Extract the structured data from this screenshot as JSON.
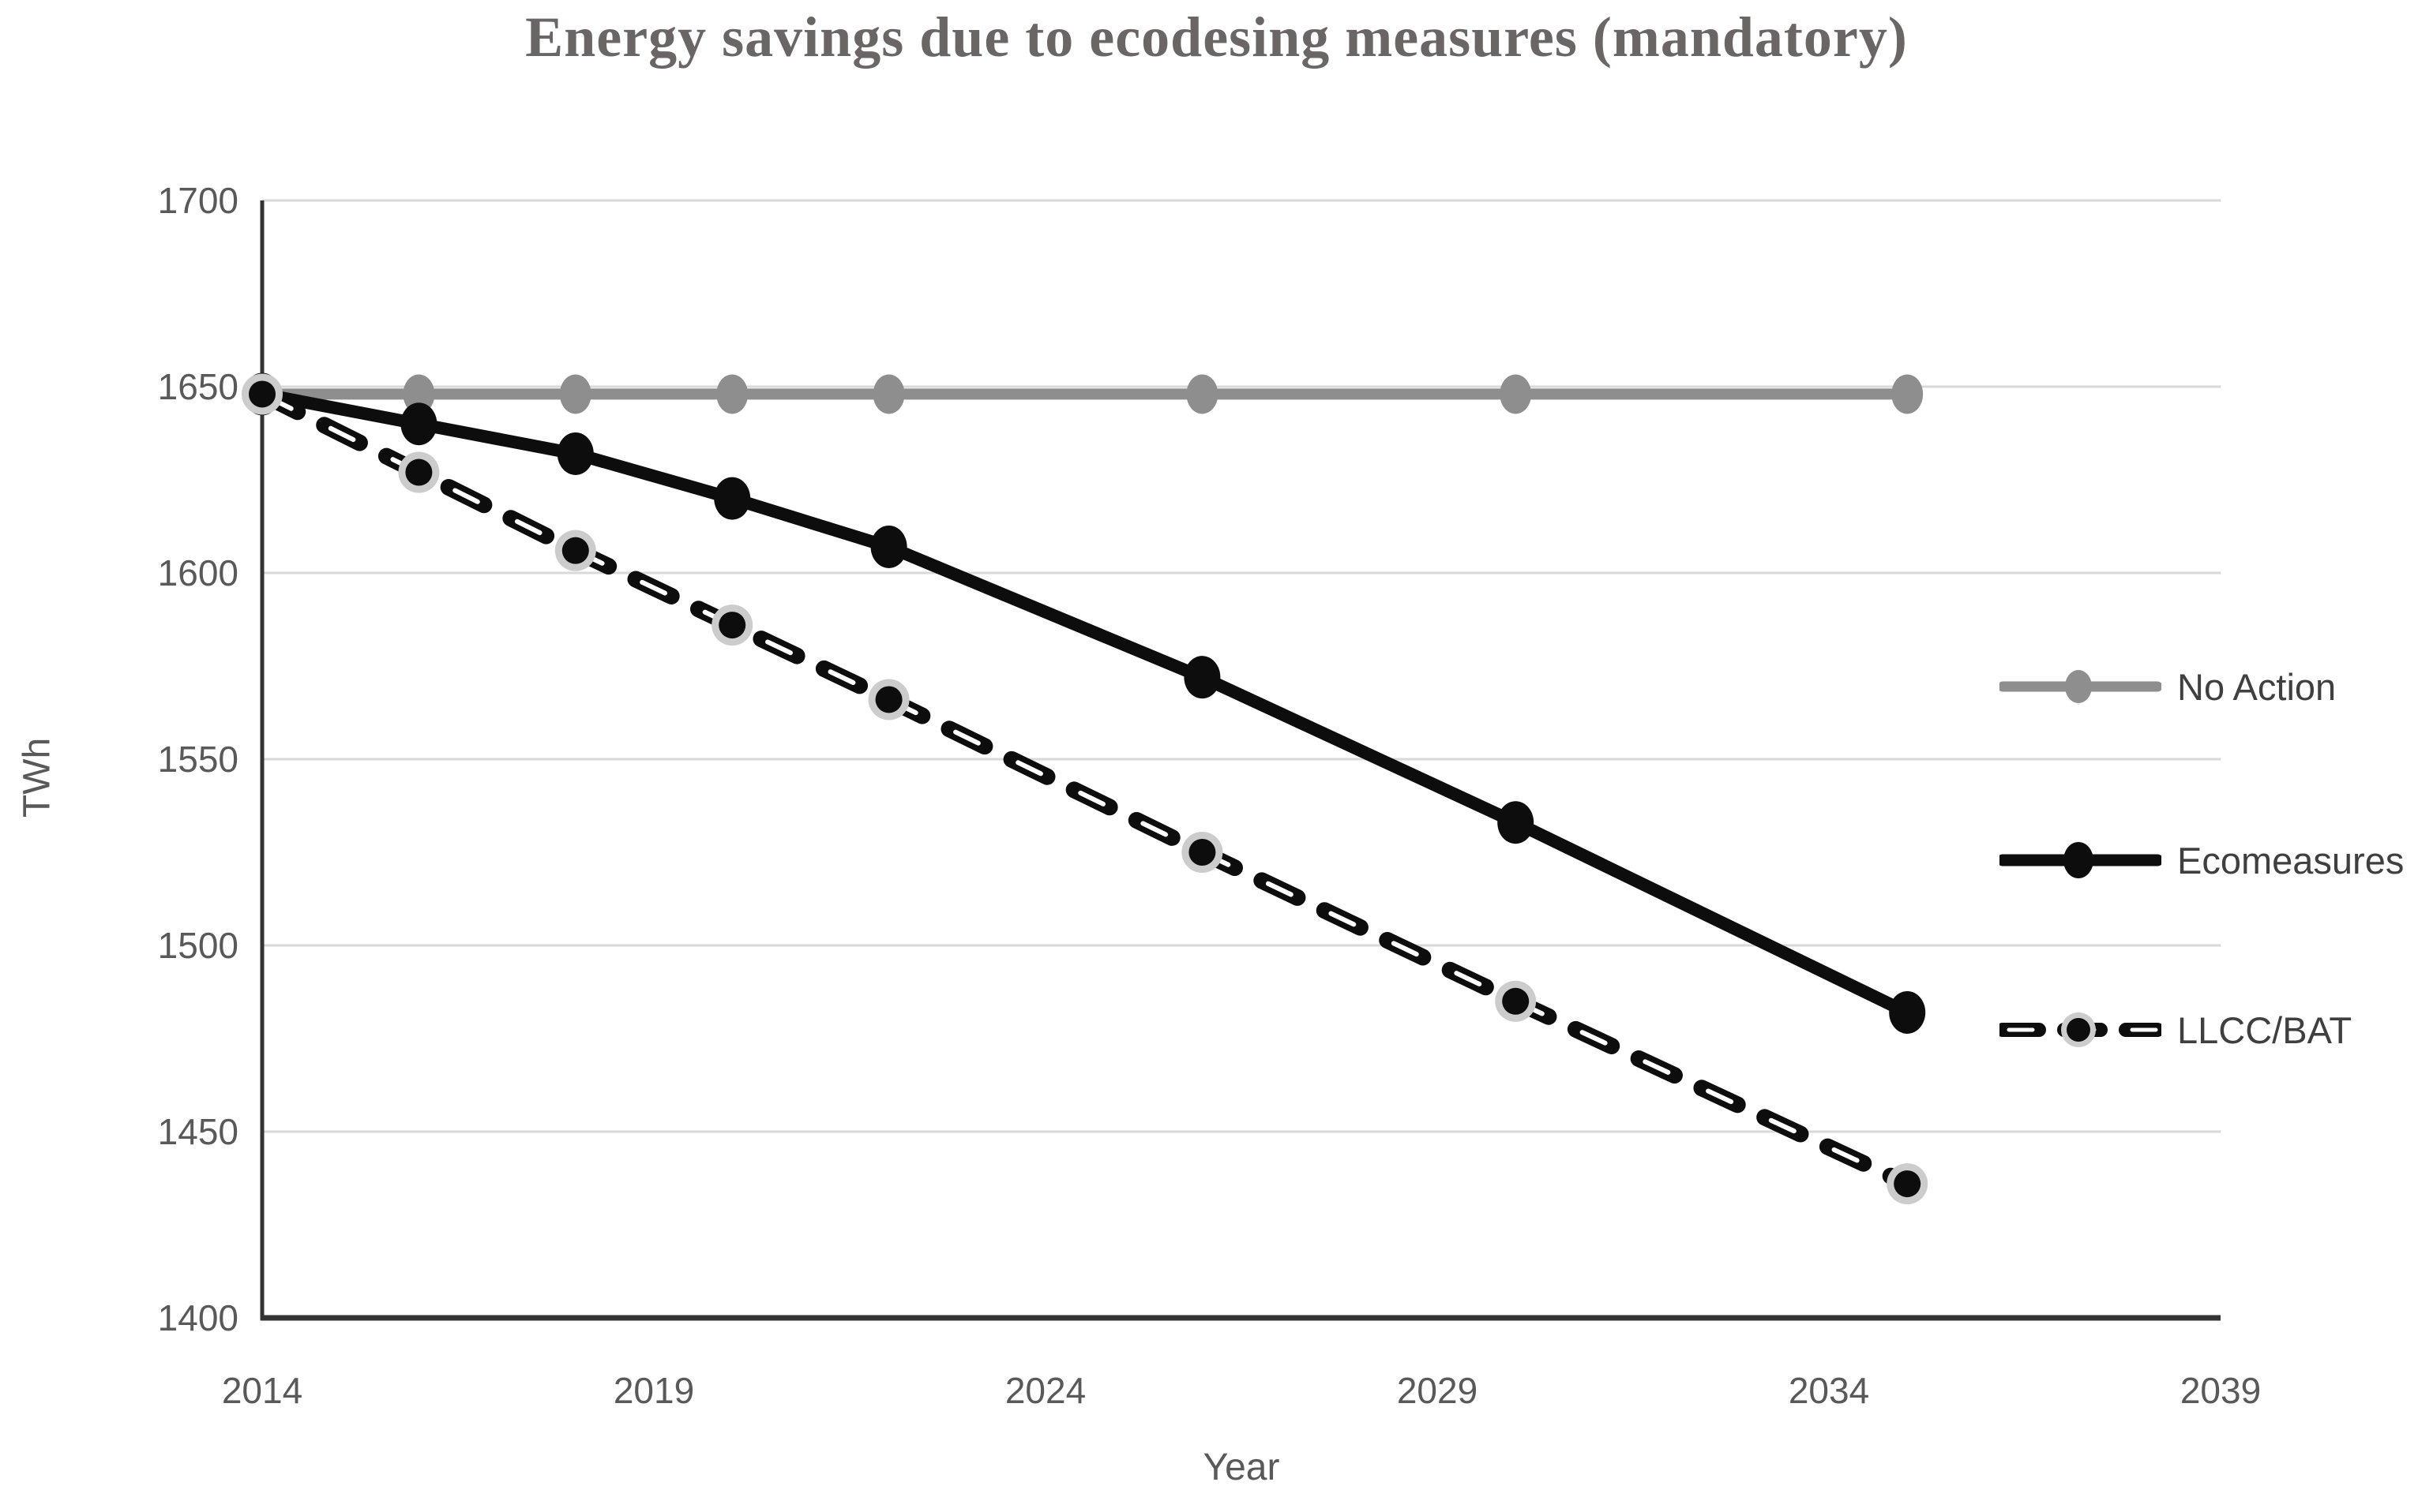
{
  "chart_data": {
    "type": "line",
    "title": "Energy savings due to ecodesing measures (mandatory)",
    "xlabel": "Year",
    "ylabel": "TWh",
    "x_range": [
      2014,
      2039
    ],
    "y_range": [
      1400,
      1700
    ],
    "x_ticks": [
      2014,
      2019,
      2024,
      2029,
      2034,
      2039
    ],
    "y_ticks": [
      1400,
      1450,
      1500,
      1550,
      1600,
      1650,
      1700
    ],
    "grid": "horizontal-on",
    "legend_position": "right",
    "x": [
      2014,
      2016,
      2018,
      2020,
      2022,
      2026,
      2030,
      2035
    ],
    "series": [
      {
        "name": "No Action",
        "style": "solid",
        "color": "#8e8e8e",
        "values": [
          1648,
          1648,
          1648,
          1648,
          1648,
          1648,
          1648,
          1648
        ]
      },
      {
        "name": "Ecomeasures",
        "style": "solid",
        "color": "#0d0d0d",
        "values": [
          1648,
          1640,
          1632,
          1620,
          1607,
          1572,
          1533,
          1482
        ]
      },
      {
        "name": "LLCC/BAT",
        "style": "dashed",
        "color": "#0d0d0d",
        "values": [
          1648,
          1627,
          1606,
          1586,
          1566,
          1525,
          1485,
          1436
        ]
      }
    ],
    "colors": {
      "gridline": "#d9d9d9",
      "axis_line": "#333333",
      "tick_label": "#595959",
      "axis_title": "#595959",
      "title_text": "#6a6666",
      "legend_text": "#3f3f3f",
      "marker_halo": "#cccccc",
      "background": "#ffffff"
    }
  }
}
